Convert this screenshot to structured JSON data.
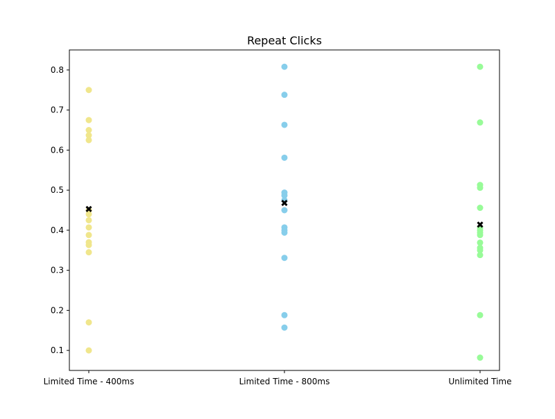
{
  "chart_data": {
    "type": "scatter",
    "title": "Repeat Clicks",
    "xlabel": "",
    "ylabel": "",
    "categories": [
      "Limited Time - 400ms",
      "Limited Time - 800ms",
      "Unlimited Time"
    ],
    "ylim": [
      0.05,
      0.85
    ],
    "yticks": [
      0.1,
      0.2,
      0.3,
      0.4,
      0.5,
      0.6,
      0.7,
      0.8
    ],
    "ytick_labels": [
      "0.1",
      "0.2",
      "0.3",
      "0.4",
      "0.5",
      "0.6",
      "0.7",
      "0.8"
    ],
    "grid": false,
    "series": [
      {
        "category": "Limited Time - 400ms",
        "color": "#f0e68c",
        "values": [
          0.75,
          0.675,
          0.65,
          0.637,
          0.625,
          0.45,
          0.44,
          0.425,
          0.407,
          0.388,
          0.37,
          0.363,
          0.345,
          0.17,
          0.1
        ],
        "mean": 0.453
      },
      {
        "category": "Limited Time - 800ms",
        "color": "#87ceeb",
        "values": [
          0.808,
          0.738,
          0.663,
          0.581,
          0.494,
          0.487,
          0.475,
          0.45,
          0.407,
          0.4,
          0.394,
          0.331,
          0.188,
          0.157
        ],
        "mean": 0.468
      },
      {
        "category": "Unlimited Time",
        "color": "#98fb98",
        "values": [
          0.808,
          0.669,
          0.513,
          0.506,
          0.456,
          0.406,
          0.4,
          0.394,
          0.388,
          0.369,
          0.356,
          0.35,
          0.338,
          0.188,
          0.082
        ],
        "mean": 0.414
      }
    ],
    "mean_marker_color": "#000000"
  }
}
